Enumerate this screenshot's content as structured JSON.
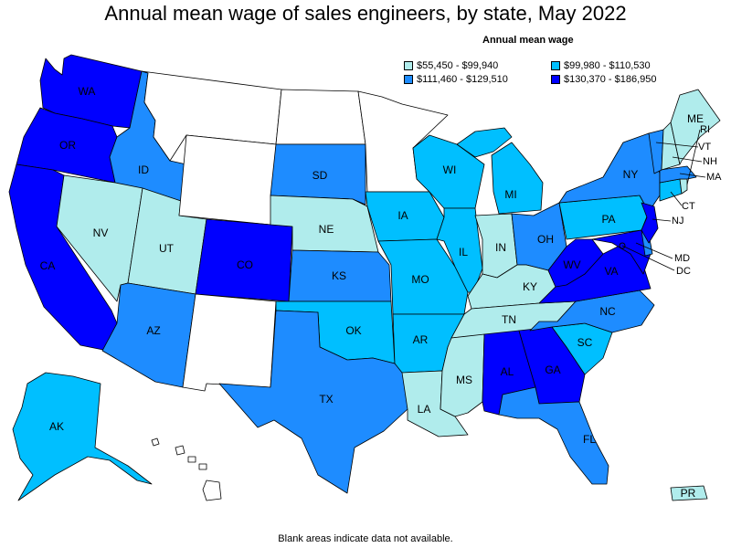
{
  "title": "Annual mean wage of sales engineers, by state, May 2022",
  "legend": {
    "title": "Annual mean wage",
    "items": [
      {
        "range": "$55,450 - $99,940",
        "color": "#b0ecec"
      },
      {
        "range": "$99,980 - $110,530",
        "color": "#00bfff"
      },
      {
        "range": "$111,460 - $129,510",
        "color": "#1e8cff"
      },
      {
        "range": "$130,370 - $186,950",
        "color": "#0000ff"
      }
    ]
  },
  "colors": {
    "nodata": "#ffffff",
    "border": "#000000"
  },
  "states": {
    "WA": {
      "label": "WA",
      "bin": 3
    },
    "OR": {
      "label": "OR",
      "bin": 3
    },
    "CA": {
      "label": "CA",
      "bin": 3
    },
    "ID": {
      "label": "ID",
      "bin": 2
    },
    "NV": {
      "label": "NV",
      "bin": 0
    },
    "UT": {
      "label": "UT",
      "bin": 0
    },
    "AZ": {
      "label": "AZ",
      "bin": 2
    },
    "MT": {
      "label": "",
      "bin": -1
    },
    "WY": {
      "label": "",
      "bin": -1
    },
    "CO": {
      "label": "CO",
      "bin": 3
    },
    "NM": {
      "label": "",
      "bin": -1
    },
    "ND": {
      "label": "",
      "bin": -1
    },
    "SD": {
      "label": "SD",
      "bin": 2
    },
    "NE": {
      "label": "NE",
      "bin": 0
    },
    "KS": {
      "label": "KS",
      "bin": 2
    },
    "OK": {
      "label": "OK",
      "bin": 1
    },
    "TX": {
      "label": "TX",
      "bin": 2
    },
    "MN": {
      "label": "",
      "bin": -1
    },
    "IA": {
      "label": "IA",
      "bin": 1
    },
    "MO": {
      "label": "MO",
      "bin": 1
    },
    "AR": {
      "label": "AR",
      "bin": 1
    },
    "LA": {
      "label": "LA",
      "bin": 0
    },
    "WI": {
      "label": "WI",
      "bin": 1
    },
    "IL": {
      "label": "IL",
      "bin": 1
    },
    "MI": {
      "label": "MI",
      "bin": 1
    },
    "IN": {
      "label": "IN",
      "bin": 0
    },
    "OH": {
      "label": "OH",
      "bin": 2
    },
    "KY": {
      "label": "KY",
      "bin": 0
    },
    "TN": {
      "label": "TN",
      "bin": 0
    },
    "MS": {
      "label": "MS",
      "bin": 0
    },
    "AL": {
      "label": "AL",
      "bin": 3
    },
    "GA": {
      "label": "GA",
      "bin": 3
    },
    "FL": {
      "label": "FL",
      "bin": 2
    },
    "SC": {
      "label": "SC",
      "bin": 1
    },
    "NC": {
      "label": "NC",
      "bin": 2
    },
    "VA": {
      "label": "VA",
      "bin": 3
    },
    "WV": {
      "label": "WV",
      "bin": 3
    },
    "PA": {
      "label": "PA",
      "bin": 1
    },
    "NY": {
      "label": "NY",
      "bin": 2
    },
    "VT": {
      "label": "VT",
      "bin": 2
    },
    "NH": {
      "label": "NH",
      "bin": 0
    },
    "ME": {
      "label": "ME",
      "bin": 0
    },
    "MA": {
      "label": "MA",
      "bin": 2
    },
    "RI": {
      "label": "RI",
      "bin": 0
    },
    "CT": {
      "label": "CT",
      "bin": 1
    },
    "NJ": {
      "label": "NJ",
      "bin": 3
    },
    "DE": {
      "label": "",
      "bin": 2
    },
    "MD": {
      "label": "MD",
      "bin": 3
    },
    "DC": {
      "label": "DC",
      "bin": 3
    },
    "AK": {
      "label": "AK",
      "bin": 1
    },
    "HI": {
      "label": "",
      "bin": -1
    },
    "PR": {
      "label": "PR",
      "bin": 0
    }
  },
  "footnote": "Blank areas indicate data not available."
}
